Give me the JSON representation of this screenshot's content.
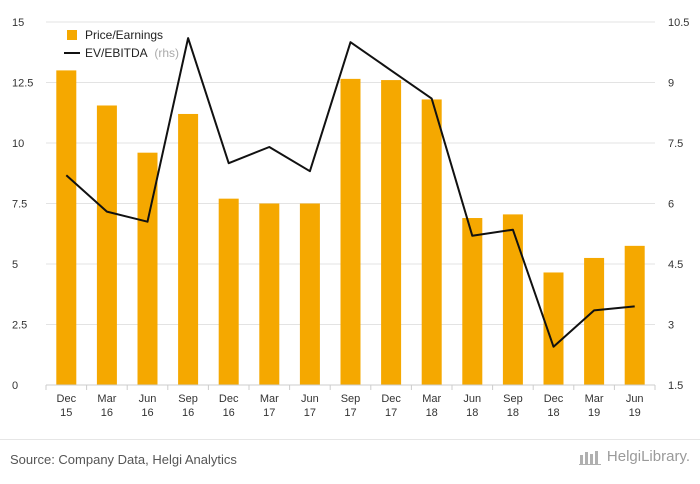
{
  "chart_data": {
    "type": "bar",
    "categories": [
      [
        "Dec",
        "15"
      ],
      [
        "Mar",
        "16"
      ],
      [
        "Jun",
        "16"
      ],
      [
        "Sep",
        "16"
      ],
      [
        "Dec",
        "16"
      ],
      [
        "Mar",
        "17"
      ],
      [
        "Jun",
        "17"
      ],
      [
        "Sep",
        "17"
      ],
      [
        "Dec",
        "17"
      ],
      [
        "Mar",
        "18"
      ],
      [
        "Jun",
        "18"
      ],
      [
        "Sep",
        "18"
      ],
      [
        "Dec",
        "18"
      ],
      [
        "Mar",
        "19"
      ],
      [
        "Jun",
        "19"
      ]
    ],
    "series": [
      {
        "name": "Price/Earnings",
        "type": "bar",
        "axis": "left",
        "color": "#f5a800",
        "values": [
          13.0,
          11.55,
          9.6,
          11.2,
          7.7,
          7.5,
          7.5,
          12.65,
          12.6,
          11.8,
          6.9,
          7.05,
          4.65,
          5.25,
          5.75
        ]
      },
      {
        "name": "EV/EBITDA",
        "name_suffix": "(rhs)",
        "type": "line",
        "axis": "right",
        "color": "#111111",
        "values": [
          6.7,
          5.8,
          5.55,
          10.1,
          7.0,
          7.4,
          6.8,
          10.0,
          9.3,
          8.6,
          5.2,
          5.35,
          2.45,
          3.35,
          3.45
        ]
      }
    ],
    "y_left": {
      "min": 0,
      "max": 15,
      "ticks": [
        "0",
        "2.5",
        "5",
        "7.5",
        "10",
        "12.5",
        "15"
      ]
    },
    "y_right": {
      "min": 1.5,
      "max": 10.5,
      "ticks": [
        "1.5",
        "3",
        "4.5",
        "6",
        "7.5",
        "9",
        "10.5"
      ]
    },
    "grid": true,
    "legend_position": "top-left"
  },
  "footer": {
    "source": "Source: Company Data, Helgi Analytics",
    "brand": "HelgiLibrary."
  }
}
